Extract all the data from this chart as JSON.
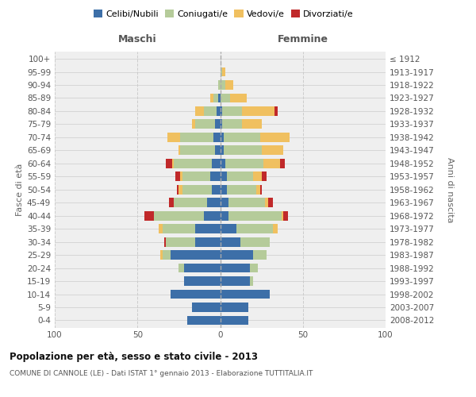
{
  "age_groups": [
    "0-4",
    "5-9",
    "10-14",
    "15-19",
    "20-24",
    "25-29",
    "30-34",
    "35-39",
    "40-44",
    "45-49",
    "50-54",
    "55-59",
    "60-64",
    "65-69",
    "70-74",
    "75-79",
    "80-84",
    "85-89",
    "90-94",
    "95-99",
    "100+"
  ],
  "birth_years": [
    "2008-2012",
    "2003-2007",
    "1998-2002",
    "1993-1997",
    "1988-1992",
    "1983-1987",
    "1978-1982",
    "1973-1977",
    "1968-1972",
    "1963-1967",
    "1958-1962",
    "1953-1957",
    "1948-1952",
    "1943-1947",
    "1938-1942",
    "1933-1937",
    "1928-1932",
    "1923-1927",
    "1918-1922",
    "1913-1917",
    "≤ 1912"
  ],
  "m_celibi": [
    20,
    17,
    30,
    22,
    22,
    30,
    15,
    15,
    10,
    8,
    5,
    6,
    5,
    3,
    4,
    3,
    2,
    1,
    0,
    0,
    0
  ],
  "m_coniugati": [
    0,
    0,
    0,
    0,
    3,
    5,
    18,
    20,
    30,
    20,
    18,
    17,
    23,
    21,
    20,
    12,
    8,
    3,
    1,
    0,
    0
  ],
  "m_vedovi": [
    0,
    0,
    0,
    0,
    0,
    1,
    0,
    2,
    0,
    0,
    2,
    1,
    1,
    1,
    8,
    2,
    5,
    2,
    0,
    0,
    0
  ],
  "m_divorziati": [
    0,
    0,
    0,
    0,
    0,
    0,
    1,
    0,
    6,
    3,
    1,
    3,
    4,
    0,
    0,
    0,
    0,
    0,
    0,
    0,
    0
  ],
  "f_nubili": [
    17,
    17,
    30,
    18,
    18,
    20,
    12,
    10,
    5,
    5,
    4,
    4,
    3,
    2,
    2,
    1,
    1,
    0,
    0,
    0,
    0
  ],
  "f_coniugate": [
    0,
    0,
    0,
    2,
    5,
    8,
    18,
    22,
    32,
    22,
    18,
    16,
    23,
    23,
    22,
    12,
    12,
    6,
    3,
    1,
    0
  ],
  "f_vedove": [
    0,
    0,
    0,
    0,
    0,
    0,
    0,
    3,
    1,
    2,
    2,
    5,
    10,
    13,
    18,
    12,
    20,
    10,
    5,
    2,
    0
  ],
  "f_divorziate": [
    0,
    0,
    0,
    0,
    0,
    0,
    0,
    0,
    3,
    3,
    1,
    3,
    3,
    0,
    0,
    0,
    2,
    0,
    0,
    0,
    0
  ],
  "c_celibi": "#3d6fa8",
  "c_coniugati": "#b5cb9a",
  "c_vedovi": "#f0c060",
  "c_divorziati": "#c0292a",
  "title": "Popolazione per età, sesso e stato civile - 2013",
  "subtitle": "COMUNE DI CANNOLE (LE) - Dati ISTAT 1° gennaio 2013 - Elaborazione TUTTITALIA.IT",
  "ylabel_left": "Fasce di età",
  "ylabel_right": "Anni di nascita",
  "xlabel_maschi": "Maschi",
  "xlabel_femmine": "Femmine"
}
